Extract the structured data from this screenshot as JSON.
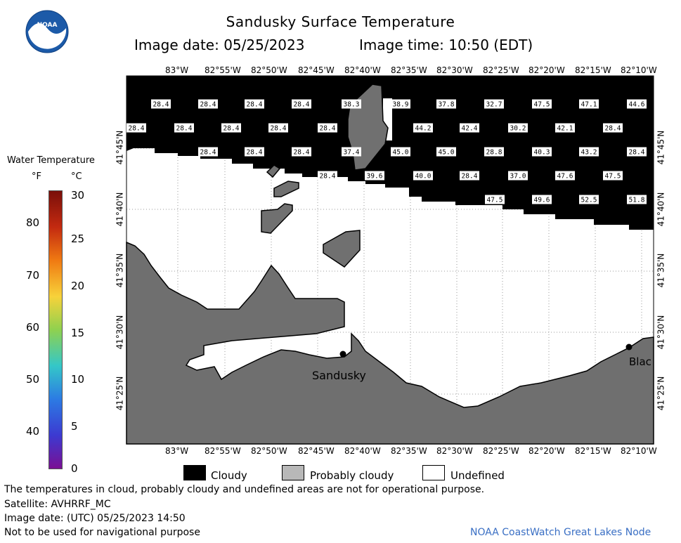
{
  "header": {
    "title": "Sandusky Surface Temperature",
    "image_date_label": "Image date: 05/25/2023",
    "image_time_label": "Image time: 10:50 (EDT)"
  },
  "logo": {
    "text": "NOAA"
  },
  "scale": {
    "title": "Water Temperature",
    "unit_f": "°F",
    "unit_c": "°C",
    "f_ticks": [
      "80",
      "70",
      "60",
      "50",
      "40"
    ],
    "c_ticks": [
      "30",
      "25",
      "20",
      "15",
      "10",
      "5",
      "0"
    ],
    "colors": [
      "#7a0f0a",
      "#c32a10",
      "#f07a12",
      "#f7d23a",
      "#8fd14f",
      "#34c7c8",
      "#2c7be3",
      "#3c3ad1",
      "#7a0f94"
    ]
  },
  "map": {
    "top_lon_labels": [
      "83°W",
      "82°55'W",
      "82°50'W",
      "82°45'W",
      "82°40'W",
      "82°35'W",
      "82°30'W",
      "82°25'W",
      "82°20'W",
      "82°15'W",
      "82°10'W"
    ],
    "bottom_lon_labels": [
      "83°W",
      "82°55'W",
      "82°50'W",
      "82°45'W",
      "82°40'W",
      "82°35'W",
      "82°30'W",
      "82°25'W",
      "82°20'W",
      "82°15'W",
      "82°10'W"
    ],
    "lat_labels": [
      "41°45'N",
      "41°40'N",
      "41°35'N",
      "41°30'N",
      "41°25'N"
    ],
    "places": [
      "Sandusky",
      "Blac"
    ],
    "temperatures": [
      "28.4",
      "28.4",
      "28.4",
      "28.4",
      "38.3",
      "38.9",
      "37.8",
      "32.7",
      "47.5",
      "47.1",
      "44.6",
      "28.4",
      "28.4",
      "28.4",
      "28.4",
      "28.4",
      "44.2",
      "42.4",
      "30.2",
      "42.1",
      "28.4",
      "28.4",
      "28.4",
      "28.4",
      "37.4",
      "45.0",
      "45.0",
      "28.8",
      "40.3",
      "43.2",
      "28.4",
      "28.4",
      "39.6",
      "40.0",
      "28.4",
      "37.0",
      "47.6",
      "47.5",
      "47.5",
      "49.6",
      "52.5",
      "51.8"
    ]
  },
  "legend": {
    "items": [
      {
        "label": "Cloudy",
        "color": "#000000"
      },
      {
        "label": "Probably cloudy",
        "color": "#b8b8b8"
      },
      {
        "label": "Undefined",
        "color": "#ffffff"
      }
    ]
  },
  "footer": {
    "disclaimer": "The temperatures in cloud, probably cloudy and undefined areas are not for operational purpose.",
    "satellite": "Satellite: AVHRRF_MC",
    "utc_date": "Image date: (UTC) 05/25/2023  14:50",
    "nav": "Not to be used for navigational purpose",
    "credit": "NOAA CoastWatch Great Lakes Node"
  }
}
